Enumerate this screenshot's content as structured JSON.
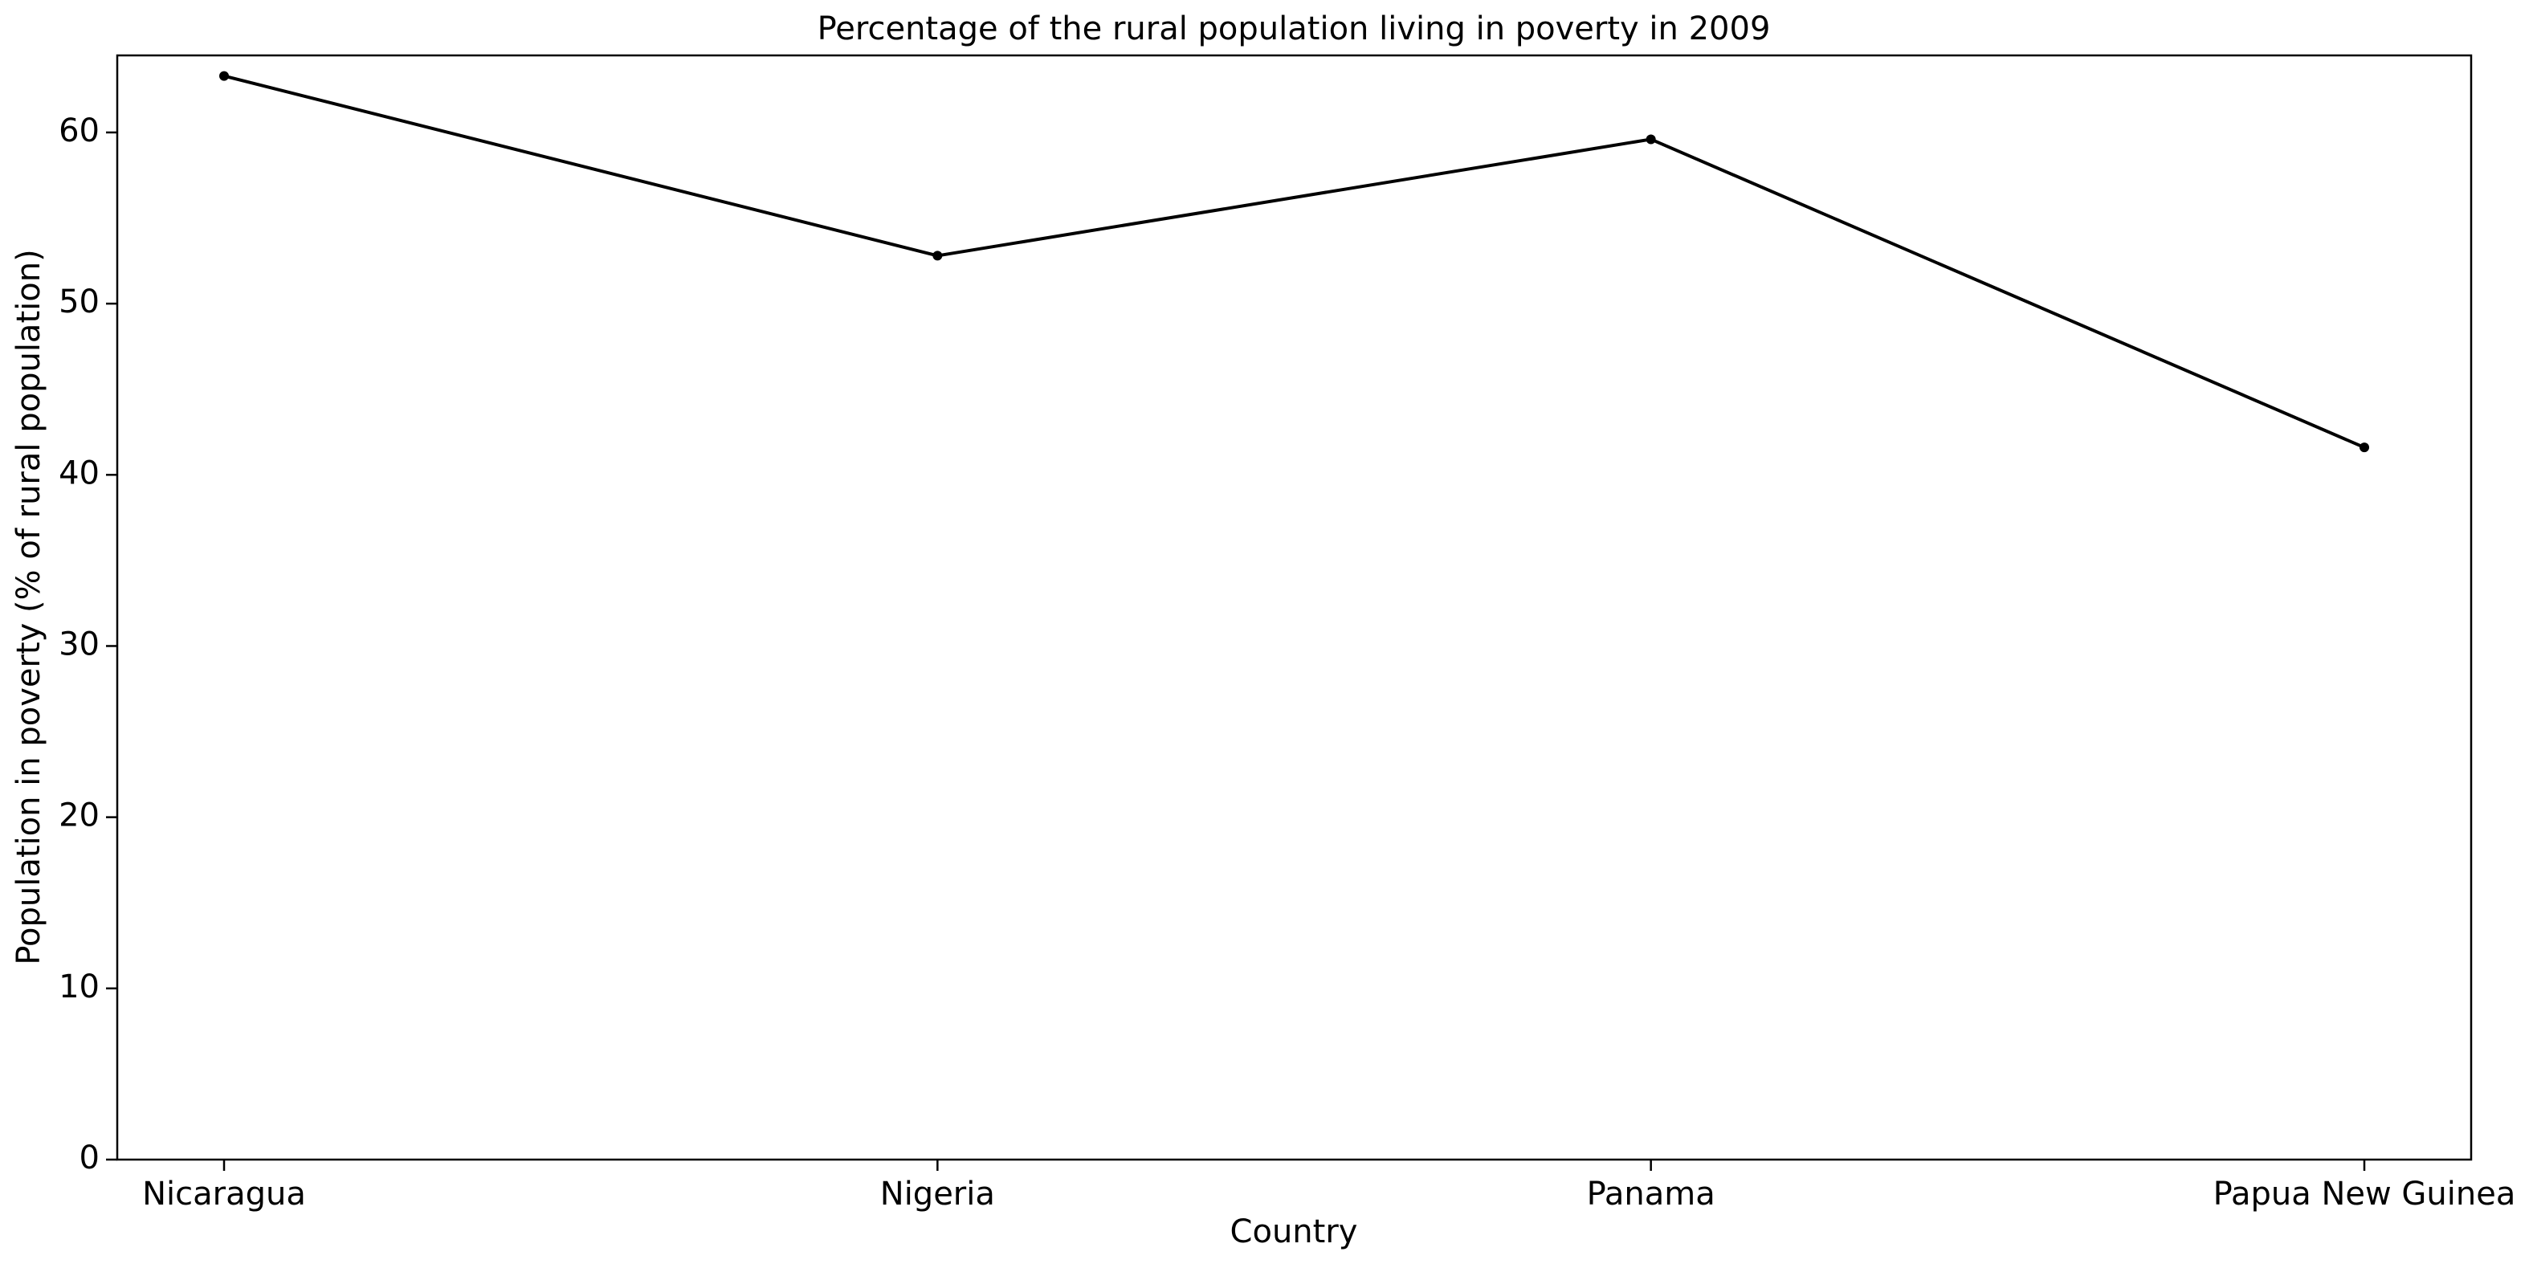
{
  "chart_data": {
    "type": "line",
    "title": "Percentage of the rural population living in poverty in 2009",
    "xlabel": "Country",
    "ylabel": "Population in poverty (% of rural population)",
    "categories": [
      "Nicaragua",
      "Nigeria",
      "Panama",
      "Papua New Guinea"
    ],
    "series": [
      {
        "values": [
          63.3,
          52.8,
          59.6,
          41.6
        ],
        "color": "#000000"
      }
    ],
    "ylim": [
      0,
      64.5
    ],
    "yticks": [
      0,
      10,
      20,
      30,
      40,
      50,
      60
    ],
    "grid": false,
    "legend": "none"
  }
}
